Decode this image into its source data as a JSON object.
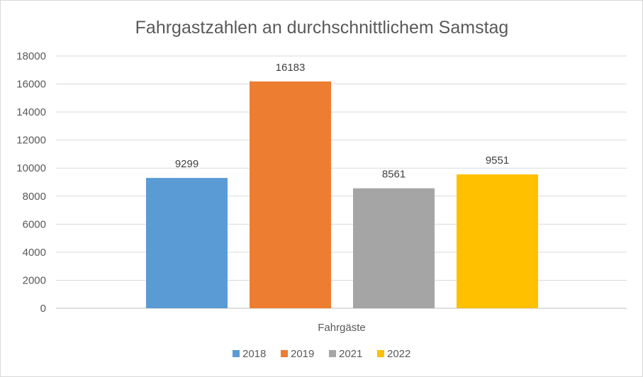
{
  "chart_data": {
    "type": "bar",
    "title": "Fahrgastzahlen an durchschnittlichem Samstag",
    "categories": [
      "Fahrgäste"
    ],
    "series": [
      {
        "name": "2018",
        "values": [
          9299
        ],
        "color": "#5b9bd5"
      },
      {
        "name": "2019",
        "values": [
          16183
        ],
        "color": "#ed7d31"
      },
      {
        "name": "2021",
        "values": [
          8561
        ],
        "color": "#a5a5a5"
      },
      {
        "name": "2022",
        "values": [
          9551
        ],
        "color": "#ffc000"
      }
    ],
    "ylim": [
      0,
      18000
    ],
    "yticks": [
      "0",
      "2000",
      "4000",
      "6000",
      "8000",
      "10000",
      "12000",
      "14000",
      "16000",
      "18000"
    ],
    "data_labels": [
      "9299",
      "16183",
      "8561",
      "9551"
    ],
    "grid": true,
    "legend_position": "bottom"
  }
}
